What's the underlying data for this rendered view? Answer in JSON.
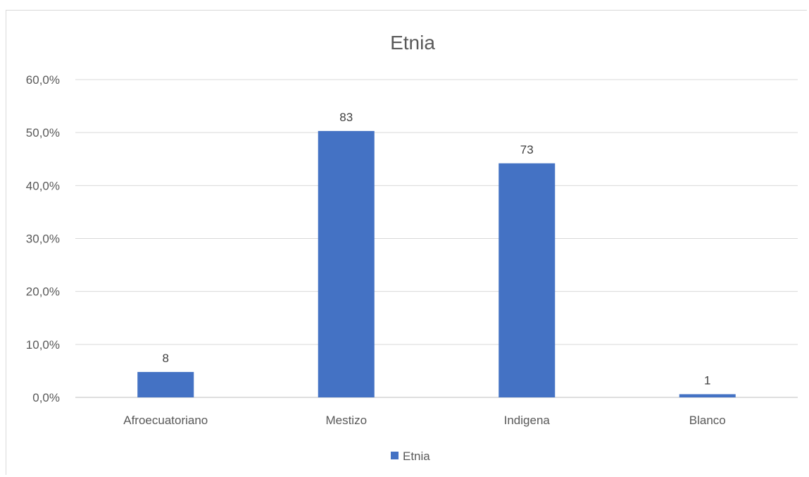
{
  "chart_data": {
    "type": "bar",
    "title": "Etnia",
    "xlabel": "",
    "ylabel": "",
    "categories": [
      "Afroecuatoriano",
      "Mestizo",
      "Indigena",
      "Blanco"
    ],
    "series": [
      {
        "name": "Etnia",
        "values": [
          4.8,
          50.3,
          44.2,
          0.6
        ],
        "data_labels": [
          "8",
          "83",
          "73",
          "1"
        ],
        "color": "#4472c4"
      }
    ],
    "ylim": [
      0,
      60
    ],
    "yticks": [
      "0,0%",
      "10,0%",
      "20,0%",
      "30,0%",
      "40,0%",
      "50,0%",
      "60,0%"
    ],
    "grid": true,
    "legend": "bottom"
  }
}
